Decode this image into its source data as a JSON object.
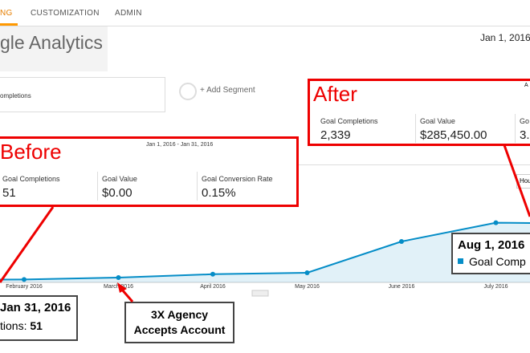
{
  "nav": {
    "tabs": [
      "NG",
      "CUSTOMIZATION",
      "ADMIN"
    ]
  },
  "header": {
    "logo": "gle Analytics",
    "date": "Jan 1, 2016"
  },
  "segments": {
    "current": "ompletions",
    "add": "+ Add Segment"
  },
  "before": {
    "label": "Before",
    "range": "Jan 1, 2016 - Jan 31, 2016",
    "metrics": [
      {
        "name": "Goal Completions",
        "value": "51"
      },
      {
        "name": "Goal Value",
        "value": "$0.00"
      },
      {
        "name": "Goal Conversion Rate",
        "value": "0.15%"
      }
    ]
  },
  "after": {
    "label": "After",
    "corner": "A",
    "metrics": [
      {
        "name": "Goal Completions",
        "value": "2,339"
      },
      {
        "name": "Goal Value",
        "value": "$285,450.00"
      },
      {
        "name": "Go",
        "value": "3."
      }
    ]
  },
  "hourly": "Hou",
  "tooltip_before": {
    "date": "Jan 31, 2016",
    "metric": "tions:",
    "value": "51"
  },
  "tooltip_after": {
    "date": "Aug 1, 2016",
    "metric": "Goal Comp"
  },
  "annotation": {
    "lines": [
      "3X Agency",
      "Accepts Account"
    ]
  },
  "chart_data": {
    "type": "line",
    "categories": [
      null,
      "February 2016",
      "March 2016",
      "April 2016",
      "May 2016",
      "June 2016",
      "July 2016",
      null
    ],
    "series": [
      {
        "name": "Goal Completions",
        "color": "#058dc7",
        "values": [
          51,
          60,
          100,
          170,
          200,
          850,
          1240,
          1220
        ]
      }
    ],
    "ylim": [
      0,
      1500
    ]
  }
}
